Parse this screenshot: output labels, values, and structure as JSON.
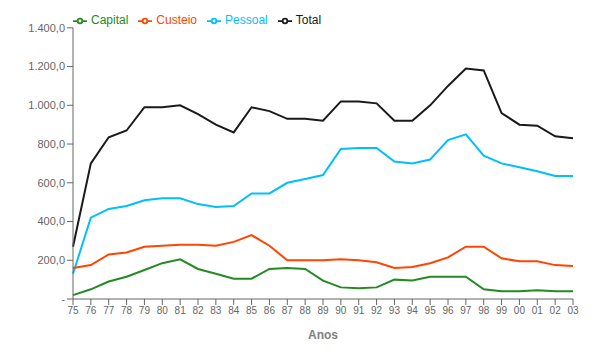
{
  "chart_data": {
    "type": "line",
    "xlabel": "Anos",
    "categories": [
      "75",
      "76",
      "77",
      "78",
      "79",
      "80",
      "81",
      "82",
      "83",
      "84",
      "85",
      "86",
      "87",
      "88",
      "89",
      "90",
      "91",
      "92",
      "93",
      "94",
      "95",
      "96",
      "97",
      "98",
      "99",
      "00",
      "01",
      "02",
      "03"
    ],
    "series": [
      {
        "name": "Pessoal",
        "color": "#00BFFF",
        "values": [
          130,
          420,
          465,
          480,
          510,
          520,
          520,
          490,
          475,
          480,
          545,
          545,
          600,
          620,
          640,
          775,
          780,
          780,
          710,
          700,
          720,
          820,
          850,
          740,
          700,
          680,
          660,
          635,
          635
        ]
      },
      {
        "name": "Custeio",
        "color": "#FF4500",
        "values": [
          160,
          175,
          230,
          240,
          270,
          275,
          280,
          280,
          275,
          295,
          330,
          275,
          200,
          200,
          200,
          205,
          200,
          190,
          160,
          165,
          185,
          215,
          270,
          270,
          210,
          195,
          195,
          175,
          170
        ]
      },
      {
        "name": "Capital",
        "color": "#228B22",
        "values": [
          20,
          50,
          90,
          115,
          150,
          185,
          205,
          155,
          130,
          105,
          105,
          155,
          160,
          155,
          95,
          60,
          55,
          60,
          100,
          95,
          115,
          115,
          115,
          50,
          40,
          40,
          45,
          40,
          40
        ]
      },
      {
        "name": "Total",
        "color": "#1a1a1a",
        "values": [
          270,
          700,
          835,
          870,
          990,
          990,
          1000,
          955,
          900,
          860,
          990,
          970,
          930,
          930,
          920,
          1020,
          1020,
          1010,
          920,
          920,
          1000,
          1100,
          1190,
          1180,
          960,
          900,
          895,
          840,
          830
        ]
      }
    ],
    "ylim": [
      0,
      1400
    ],
    "yticks": [
      {
        "value": 0,
        "label": "-"
      },
      {
        "value": 200,
        "label": "200,0"
      },
      {
        "value": 400,
        "label": "400,0"
      },
      {
        "value": 600,
        "label": "600,0"
      },
      {
        "value": 800,
        "label": "800,0"
      },
      {
        "value": 1000,
        "label": "1.000,0"
      },
      {
        "value": 1200,
        "label": "1.200,0"
      },
      {
        "value": 1400,
        "label": "1.400,0"
      }
    ],
    "grid": false,
    "legend": "upper left"
  }
}
